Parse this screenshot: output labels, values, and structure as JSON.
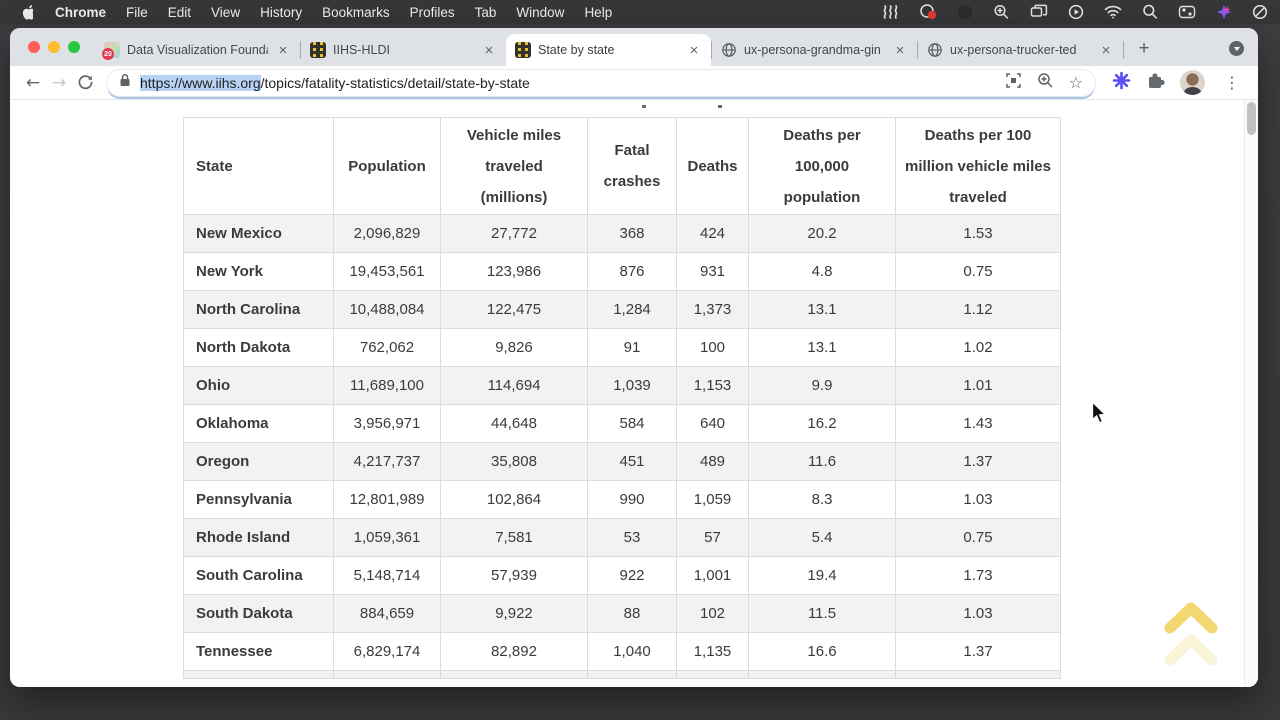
{
  "menu_bar": {
    "app_name": "Chrome",
    "menus": [
      "File",
      "Edit",
      "View",
      "History",
      "Bookmarks",
      "Profiles",
      "Tab",
      "Window",
      "Help"
    ],
    "status_icons": [
      "waves-icon",
      "screen-record-icon",
      "camera-indicator-icon",
      "zoom-plus-icon",
      "mission-control-icon",
      "play-circle-icon",
      "wifi-icon",
      "spotlight-search-icon",
      "control-center-icon",
      "assistant-sparkle-icon",
      "do-not-disturb-icon"
    ]
  },
  "tab_bar": {
    "tabs": [
      {
        "title": "Data Visualization Founda",
        "favicon": "dataviz-favicon",
        "badge": "20",
        "active": false
      },
      {
        "title": "IIHS-HLDI",
        "favicon": "iihs-road-favicon",
        "active": false
      },
      {
        "title": "State by state",
        "favicon": "iihs-road-favicon",
        "active": true
      },
      {
        "title": "ux-persona-grandma-gin",
        "favicon": "globe-favicon",
        "active": false
      },
      {
        "title": "ux-persona-trucker-ted",
        "favicon": "globe-favicon",
        "active": false
      }
    ],
    "close_glyph": "×",
    "new_tab_glyph": "+"
  },
  "toolbar": {
    "back_glyph": "←",
    "forward_glyph": "→",
    "url_selected": "https://www.iihs.org",
    "url_rest": "/topics/fatality-statistics/detail/state-by-state",
    "bookmark_glyph": "☆",
    "menu_dots_glyph": "⋮",
    "icons": [
      "qr-code-icon",
      "zoom-in-icon",
      "bookmark-star-icon",
      "asterisk-extension-icon",
      "extensions-puzzle-icon",
      "profile-avatar",
      "more-menu-icon"
    ]
  },
  "table": {
    "headers": [
      "State",
      "Population",
      "Vehicle miles traveled (millions)",
      "Fatal crashes",
      "Deaths",
      "Deaths per 100,000 population",
      "Deaths per 100 million vehicle miles traveled"
    ],
    "rows": [
      [
        "New Mexico",
        "2,096,829",
        "27,772",
        "368",
        "424",
        "20.2",
        "1.53"
      ],
      [
        "New York",
        "19,453,561",
        "123,986",
        "876",
        "931",
        "4.8",
        "0.75"
      ],
      [
        "North Carolina",
        "10,488,084",
        "122,475",
        "1,284",
        "1,373",
        "13.1",
        "1.12"
      ],
      [
        "North Dakota",
        "762,062",
        "9,826",
        "91",
        "100",
        "13.1",
        "1.02"
      ],
      [
        "Ohio",
        "11,689,100",
        "114,694",
        "1,039",
        "1,153",
        "9.9",
        "1.01"
      ],
      [
        "Oklahoma",
        "3,956,971",
        "44,648",
        "584",
        "640",
        "16.2",
        "1.43"
      ],
      [
        "Oregon",
        "4,217,737",
        "35,808",
        "451",
        "489",
        "11.6",
        "1.37"
      ],
      [
        "Pennsylvania",
        "12,801,989",
        "102,864",
        "990",
        "1,059",
        "8.3",
        "1.03"
      ],
      [
        "Rhode Island",
        "1,059,361",
        "7,581",
        "53",
        "57",
        "5.4",
        "0.75"
      ],
      [
        "South Carolina",
        "5,148,714",
        "57,939",
        "922",
        "1,001",
        "19.4",
        "1.73"
      ],
      [
        "South Dakota",
        "884,659",
        "9,922",
        "88",
        "102",
        "11.5",
        "1.03"
      ],
      [
        "Tennessee",
        "6,829,174",
        "82,892",
        "1,040",
        "1,135",
        "16.6",
        "1.37"
      ]
    ]
  },
  "misc": {
    "back_to_top": "scroll-to-top-chevrons"
  }
}
